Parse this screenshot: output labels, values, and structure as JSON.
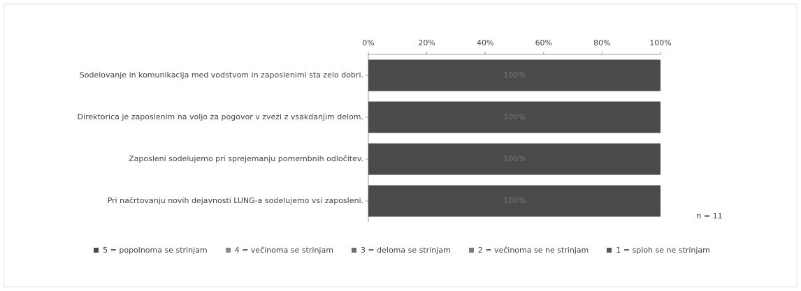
{
  "chart_data": {
    "type": "stacked-bar-horizontal",
    "categories": [
      "Sodelovanje in komunikacija med vodstvom in zaposlenimi sta zelo dobri.",
      "Direktorica je zaposlenim na voljo za pogovor v zvezi z vsakdanjim delom.",
      "Zaposleni sodelujemo pri sprejemanju pomembnih odločitev.",
      "Pri načrtovanju novih dejavnosti LUNG-a sodelujemo vsi zaposleni."
    ],
    "series": [
      {
        "name": "5 = popolnoma se strinjam",
        "color": "#4a4a4a",
        "values": [
          100,
          100,
          100,
          100
        ],
        "value_labels": [
          "100%",
          "100%",
          "100%",
          "100%"
        ]
      },
      {
        "name": "4 = večinoma se strinjam",
        "color": "#8a8a8a",
        "values": [
          0,
          0,
          0,
          0
        ]
      },
      {
        "name": "3 = deloma se strinjam",
        "color": "#6e6e6e",
        "values": [
          0,
          0,
          0,
          0
        ]
      },
      {
        "name": "2 = večinoma se ne strinjam",
        "color": "#7c7c7c",
        "values": [
          0,
          0,
          0,
          0
        ]
      },
      {
        "name": "1 = sploh se ne strinjam",
        "color": "#5a5a5a",
        "values": [
          0,
          0,
          0,
          0
        ]
      }
    ],
    "xlim": [
      0,
      100
    ],
    "xticks": [
      {
        "value": 0,
        "label": "0%"
      },
      {
        "value": 20,
        "label": "20%"
      },
      {
        "value": 40,
        "label": "40%"
      },
      {
        "value": 60,
        "label": "60%"
      },
      {
        "value": 80,
        "label": "80%"
      },
      {
        "value": 100,
        "label": "100%"
      }
    ],
    "annotation": "n = 11",
    "legend": "bottom"
  }
}
